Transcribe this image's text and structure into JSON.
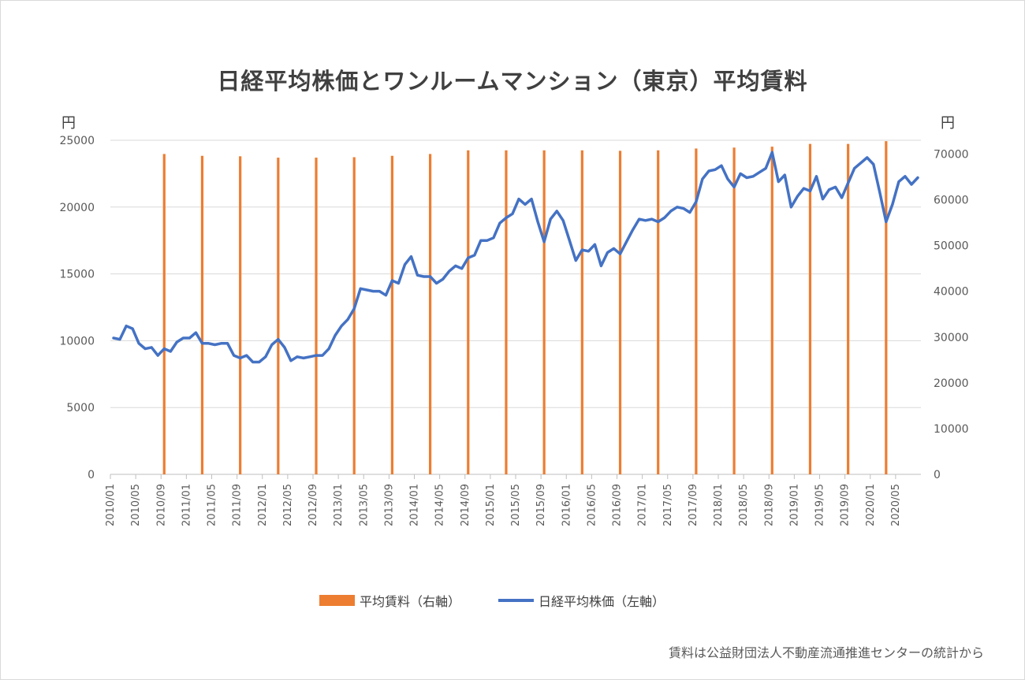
{
  "chart_data": {
    "type": "bar+line",
    "title": "日経平均株価とワンルームマンション（東京）平均賃料",
    "left_axis": {
      "unit": "円",
      "ylim": [
        0,
        25000
      ],
      "ticks": [
        "0",
        "5000",
        "10000",
        "15000",
        "20000",
        "25000"
      ]
    },
    "right_axis": {
      "unit": "円",
      "ylim": [
        0,
        73000
      ],
      "ticks": [
        "0",
        "10000",
        "20000",
        "30000",
        "40000",
        "50000",
        "60000",
        "70000"
      ]
    },
    "x_tick_labels": [
      "2010/01",
      "2010/05",
      "2010/09",
      "2011/01",
      "2011/05",
      "2011/09",
      "2012/01",
      "2012/05",
      "2012/09",
      "2013/01",
      "2013/05",
      "2013/09",
      "2014/01",
      "2014/05",
      "2014/09",
      "2015/01",
      "2015/05",
      "2015/09",
      "2016/01",
      "2016/05",
      "2016/09",
      "2017/01",
      "2017/05",
      "2017/09",
      "2018/01",
      "2018/05",
      "2018/09",
      "2019/01",
      "2019/05",
      "2019/09",
      "2020/01",
      "2020/05"
    ],
    "grid": true,
    "legend_position": "bottom",
    "bars": {
      "name": "平均賃料（右軸）",
      "axis": "right",
      "color": "#ED7D31",
      "x": [
        "2010/09",
        "2011/03",
        "2011/09",
        "2012/03",
        "2012/09",
        "2013/03",
        "2013/09",
        "2014/03",
        "2014/09",
        "2015/03",
        "2015/09",
        "2016/03",
        "2016/09",
        "2017/03",
        "2017/09",
        "2018/03",
        "2018/09",
        "2019/03",
        "2019/09",
        "2020/03"
      ],
      "values": [
        70000,
        69600,
        69500,
        69200,
        69200,
        69300,
        69600,
        70000,
        70800,
        70800,
        70800,
        70800,
        70700,
        70800,
        71200,
        71400,
        71600,
        72200,
        72200,
        72800
      ]
    },
    "line": {
      "name": "日経平均株価（左軸）",
      "axis": "left",
      "color": "#4472C4",
      "x": [
        "2010/01",
        "2010/02",
        "2010/03",
        "2010/04",
        "2010/05",
        "2010/06",
        "2010/07",
        "2010/08",
        "2010/09",
        "2010/10",
        "2010/11",
        "2010/12",
        "2011/01",
        "2011/02",
        "2011/03",
        "2011/04",
        "2011/05",
        "2011/06",
        "2011/07",
        "2011/08",
        "2011/09",
        "2011/10",
        "2011/11",
        "2011/12",
        "2012/01",
        "2012/02",
        "2012/03",
        "2012/04",
        "2012/05",
        "2012/06",
        "2012/07",
        "2012/08",
        "2012/09",
        "2012/10",
        "2012/11",
        "2012/12",
        "2013/01",
        "2013/02",
        "2013/03",
        "2013/04",
        "2013/05",
        "2013/06",
        "2013/07",
        "2013/08",
        "2013/09",
        "2013/10",
        "2013/11",
        "2013/12",
        "2014/01",
        "2014/02",
        "2014/03",
        "2014/04",
        "2014/05",
        "2014/06",
        "2014/07",
        "2014/08",
        "2014/09",
        "2014/10",
        "2014/11",
        "2014/12",
        "2015/01",
        "2015/02",
        "2015/03",
        "2015/04",
        "2015/05",
        "2015/06",
        "2015/07",
        "2015/08",
        "2015/09",
        "2015/10",
        "2015/11",
        "2015/12",
        "2016/01",
        "2016/02",
        "2016/03",
        "2016/04",
        "2016/05",
        "2016/06",
        "2016/07",
        "2016/08",
        "2016/09",
        "2016/10",
        "2016/11",
        "2016/12",
        "2017/01",
        "2017/02",
        "2017/03",
        "2017/04",
        "2017/05",
        "2017/06",
        "2017/07",
        "2017/08",
        "2017/09",
        "2017/10",
        "2017/11",
        "2017/12",
        "2018/01",
        "2018/02",
        "2018/03",
        "2018/04",
        "2018/05",
        "2018/06",
        "2018/07",
        "2018/08",
        "2018/09",
        "2018/10",
        "2018/11",
        "2018/12",
        "2019/01",
        "2019/02",
        "2019/03",
        "2019/04",
        "2019/05",
        "2019/06",
        "2019/07",
        "2019/08",
        "2019/09",
        "2019/10",
        "2019/11",
        "2019/12",
        "2020/01",
        "2020/02",
        "2020/03",
        "2020/04",
        "2020/05",
        "2020/06",
        "2020/07",
        "2020/08"
      ],
      "values": [
        10200,
        10100,
        11100,
        10900,
        9800,
        9400,
        9500,
        8900,
        9400,
        9200,
        9900,
        10200,
        10200,
        10600,
        9800,
        9800,
        9700,
        9800,
        9800,
        8900,
        8700,
        8900,
        8400,
        8400,
        8800,
        9700,
        10100,
        9500,
        8500,
        8800,
        8700,
        8800,
        8900,
        8900,
        9400,
        10400,
        11100,
        11600,
        12400,
        13900,
        13800,
        13700,
        13700,
        13400,
        14500,
        14300,
        15700,
        16300,
        14900,
        14800,
        14800,
        14300,
        14600,
        15200,
        15600,
        15400,
        16200,
        16400,
        17500,
        17500,
        17700,
        18800,
        19200,
        19500,
        20600,
        20200,
        20600,
        18900,
        17400,
        19100,
        19700,
        19000,
        17500,
        16000,
        16800,
        16700,
        17200,
        15600,
        16600,
        16900,
        16500,
        17400,
        18300,
        19100,
        19000,
        19100,
        18900,
        19200,
        19700,
        20000,
        19900,
        19600,
        20400,
        22100,
        22700,
        22800,
        23100,
        22100,
        21500,
        22500,
        22200,
        22300,
        22600,
        22900,
        24100,
        21900,
        22400,
        20000,
        20800,
        21400,
        21200,
        22300,
        20600,
        21300,
        21500,
        20700,
        21800,
        22900,
        23300,
        23700,
        23200,
        21100,
        18900,
        20200,
        21900,
        22300,
        21700,
        22200
      ]
    }
  },
  "legend": [
    {
      "label": "平均賃料（右軸）",
      "color": "#ED7D31"
    },
    {
      "label": "日経平均株価（左軸）",
      "color": "#4472C4"
    }
  ],
  "source_note": "賃料は公益財団法人不動産流通推進センターの統計から"
}
